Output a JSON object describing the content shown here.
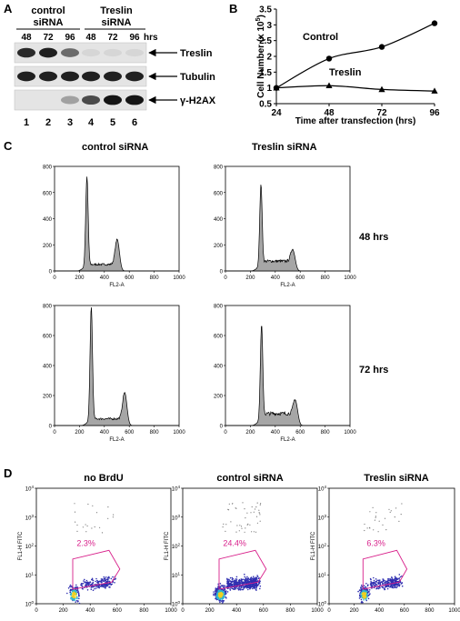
{
  "panels": {
    "a": "A",
    "b": "B",
    "c": "C",
    "d": "D"
  },
  "panel_a": {
    "group_control": [
      "control",
      "siRNA"
    ],
    "group_treslin": [
      "Treslin",
      "siRNA"
    ],
    "timepoints": [
      "48",
      "72",
      "96",
      "48",
      "72",
      "96"
    ],
    "hrs": "hrs",
    "bands": [
      "Treslin",
      "Tubulin",
      "γ-H2AX"
    ],
    "lanes": [
      "1",
      "2",
      "3",
      "4",
      "5",
      "6"
    ],
    "band_intensity": {
      "Treslin": [
        0.85,
        0.9,
        0.55,
        0.05,
        0.05,
        0.05
      ],
      "Tubulin": [
        0.9,
        0.9,
        0.9,
        0.9,
        0.9,
        0.9
      ],
      "gamma_H2AX": [
        0.0,
        0.0,
        0.3,
        0.7,
        0.95,
        0.95
      ]
    }
  },
  "chart_data": [
    {
      "type": "line",
      "panel": "B",
      "ylabel_base": "Cell Number (x 10",
      "ylabel_exp": "5",
      "ylabel_close": ")",
      "xlabel": "Time after transfection (hrs)",
      "x": [
        24,
        48,
        72,
        96
      ],
      "xticks": [
        "24",
        "48",
        "72",
        "96"
      ],
      "yticks": [
        "0.5",
        "1",
        "1.5",
        "2",
        "2.5",
        "3",
        "3.5"
      ],
      "ylim": [
        0.5,
        3.5
      ],
      "xlim": [
        24,
        96
      ],
      "series": [
        {
          "name": "Control",
          "values": [
            1.0,
            1.93,
            2.3,
            3.05
          ],
          "marker": "circle"
        },
        {
          "name": "Treslin",
          "values": [
            1.0,
            1.07,
            0.95,
            0.9
          ],
          "marker": "triangle"
        }
      ]
    },
    {
      "type": "area",
      "panel": "C",
      "note": "FACS histograms",
      "col_titles": [
        "control siRNA",
        "Treslin siRNA"
      ],
      "row_labels": [
        "48 hrs",
        "72 hrs"
      ],
      "xlabel": "FL2-A",
      "xticks": [
        "0",
        "200",
        "400",
        "600",
        "800",
        "1000"
      ],
      "yticks": [
        "0",
        "200",
        "400",
        "600",
        "800"
      ],
      "xlim": [
        0,
        1000
      ],
      "ylim": [
        0,
        800
      ],
      "histograms": [
        {
          "g1_x": 260,
          "g1_peak": 710,
          "g2_x": 505,
          "g2_peak": 225,
          "s_level": 50
        },
        {
          "g1_x": 285,
          "g1_peak": 650,
          "g2_x": 545,
          "g2_peak": 135,
          "s_level": 75
        },
        {
          "g1_x": 295,
          "g1_peak": 780,
          "g2_x": 565,
          "g2_peak": 205,
          "s_level": 45
        },
        {
          "g1_x": 290,
          "g1_peak": 660,
          "g2_x": 565,
          "g2_peak": 140,
          "s_level": 80
        }
      ]
    },
    {
      "type": "scatter",
      "panel": "D",
      "note": "BrdU flow cytometry",
      "titles": [
        "no BrdU",
        "control siRNA",
        "Treslin siRNA"
      ],
      "percentages": [
        "2.3%",
        "24.4%",
        "6.3%"
      ],
      "ylabel": "FL1-H FITC",
      "xticks": [
        "0",
        "200",
        "400",
        "600",
        "800",
        "1000"
      ],
      "ytick_exponents": [
        "0",
        "1",
        "2",
        "3",
        "4"
      ],
      "ytick_base": "10",
      "xlim": [
        0,
        1000
      ],
      "log_ylim": [
        0,
        4
      ]
    }
  ],
  "colors": {
    "hist_fill": "#a6a6a6",
    "gate": "#d81f8a",
    "dens_low": "#2f2fb0",
    "dens_mid": "#2fb5d0",
    "dens_high": "#f0d020"
  }
}
